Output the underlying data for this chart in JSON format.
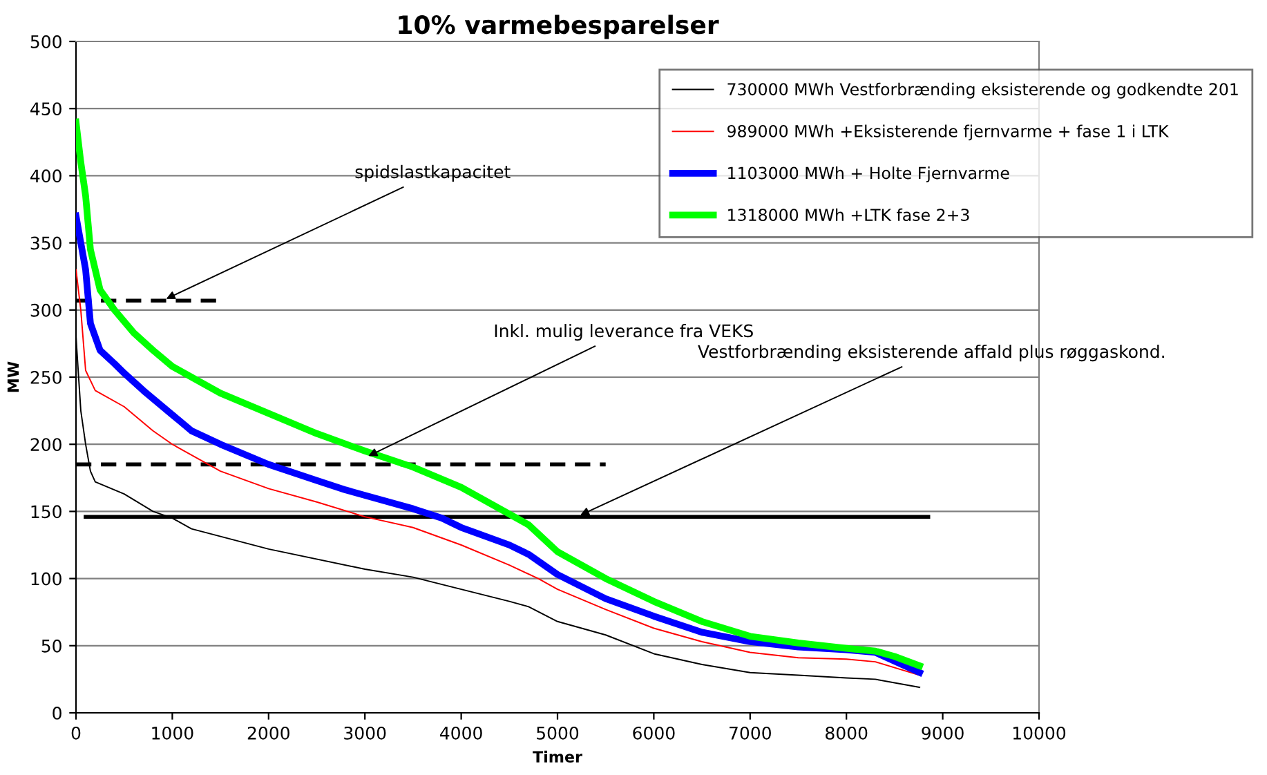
{
  "chart_data": {
    "type": "line",
    "title": "10% varmebesparelser",
    "xlabel": "Timer",
    "ylabel": "MW",
    "xlim": [
      0,
      10000
    ],
    "ylim": [
      0,
      500
    ],
    "xticks": [
      0,
      1000,
      2000,
      3000,
      4000,
      5000,
      6000,
      7000,
      8000,
      9000,
      10000
    ],
    "yticks": [
      0,
      50,
      100,
      150,
      200,
      250,
      300,
      350,
      400,
      450,
      500
    ],
    "grid": "y",
    "legend": "top right",
    "series": [
      {
        "name": "730000 MWh Vestforbrænding eksisterende og godkendte 201",
        "color": "#000000",
        "x": [
          0,
          50,
          100,
          150,
          200,
          500,
          800,
          1000,
          1200,
          2000,
          3000,
          3500,
          4000,
          4500,
          4700,
          5000,
          5500,
          6000,
          6500,
          7000,
          7500,
          8000,
          8300,
          8760
        ],
        "values": [
          280,
          225,
          200,
          180,
          172,
          163,
          150,
          145,
          137,
          122,
          107,
          101,
          92,
          83,
          79,
          68,
          58,
          44,
          36,
          30,
          28,
          26,
          25,
          19
        ]
      },
      {
        "name": "989000 MWh +Eksisterende fjernvarme + fase 1 i LTK",
        "color": "#ff0000",
        "x": [
          0,
          50,
          100,
          200,
          500,
          800,
          1000,
          1500,
          2000,
          2500,
          3000,
          3500,
          4000,
          4500,
          4800,
          5000,
          5500,
          6000,
          6500,
          7000,
          7500,
          8000,
          8300,
          8760
        ],
        "values": [
          330,
          300,
          255,
          240,
          228,
          210,
          200,
          180,
          167,
          157,
          146,
          138,
          125,
          110,
          100,
          92,
          77,
          63,
          53,
          45,
          41,
          40,
          38,
          28
        ]
      },
      {
        "name": "1103000 MWh + Holte Fjernvarme",
        "color": "#0000ff",
        "x": [
          0,
          50,
          100,
          150,
          250,
          400,
          500,
          700,
          1000,
          1200,
          1500,
          2000,
          2500,
          2800,
          3000,
          3500,
          3800,
          4000,
          4500,
          4700,
          5000,
          5500,
          6000,
          6500,
          7000,
          7500,
          8000,
          8300,
          8760
        ],
        "values": [
          370,
          350,
          330,
          290,
          270,
          260,
          253,
          240,
          222,
          210,
          200,
          185,
          173,
          166,
          162,
          152,
          145,
          138,
          125,
          118,
          103,
          85,
          72,
          60,
          53,
          49,
          47,
          45,
          30
        ]
      },
      {
        "name": "1318000 MWh +LTK fase 2+3",
        "color": "#00ff00",
        "x": [
          0,
          50,
          100,
          150,
          250,
          400,
          600,
          800,
          1000,
          1200,
          1500,
          2000,
          2500,
          3000,
          3500,
          4000,
          4500,
          4700,
          5000,
          5500,
          6000,
          6500,
          7000,
          7500,
          8000,
          8300,
          8500,
          8760
        ],
        "values": [
          440,
          410,
          385,
          345,
          315,
          300,
          283,
          270,
          258,
          250,
          238,
          223,
          208,
          195,
          183,
          168,
          148,
          140,
          120,
          100,
          83,
          68,
          57,
          52,
          48,
          46,
          42,
          35
        ]
      },
      {
        "color": "#000000",
        "line_style": "dashed",
        "x": [
          0,
          1500
        ],
        "values": [
          307,
          307
        ]
      },
      {
        "color": "#000000",
        "line_style": "dashed",
        "x": [
          0,
          5500
        ],
        "values": [
          185,
          185
        ]
      },
      {
        "color": "#000000",
        "line_style": "solid",
        "x": [
          100,
          8850
        ],
        "values": [
          146,
          146
        ]
      }
    ],
    "annotations": [
      {
        "text": "spidslastkapacitet",
        "x": 900,
        "y": 307
      },
      {
        "text": "Inkl. mulig leverance fra VEKS",
        "x": 3000,
        "y": 190
      },
      {
        "text": "Vestforbrænding eksisterende affald plus røggaskond.",
        "x": 5200,
        "y": 146
      }
    ]
  }
}
